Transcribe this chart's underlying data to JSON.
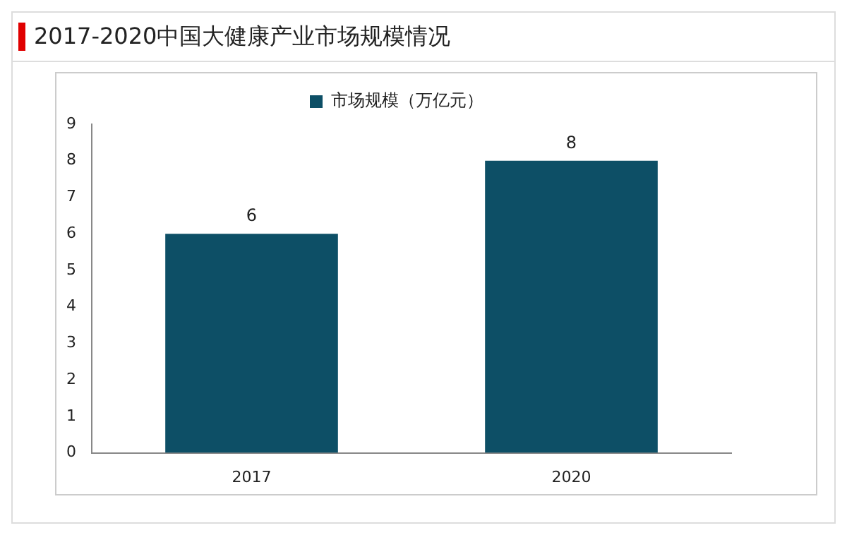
{
  "chart_data": {
    "type": "bar",
    "title": "2017-2020中国大健康产业市场规模情况",
    "categories": [
      "2017",
      "2020"
    ],
    "series": [
      {
        "name": "市场规模（万亿元）",
        "color": "#0d4f66",
        "values": [
          6,
          8
        ]
      }
    ],
    "ylim": [
      0,
      9
    ],
    "yticks": [
      0,
      1,
      2,
      3,
      4,
      5,
      6,
      7,
      8,
      9
    ],
    "grid": false,
    "legend": "top",
    "data_labels": true
  }
}
